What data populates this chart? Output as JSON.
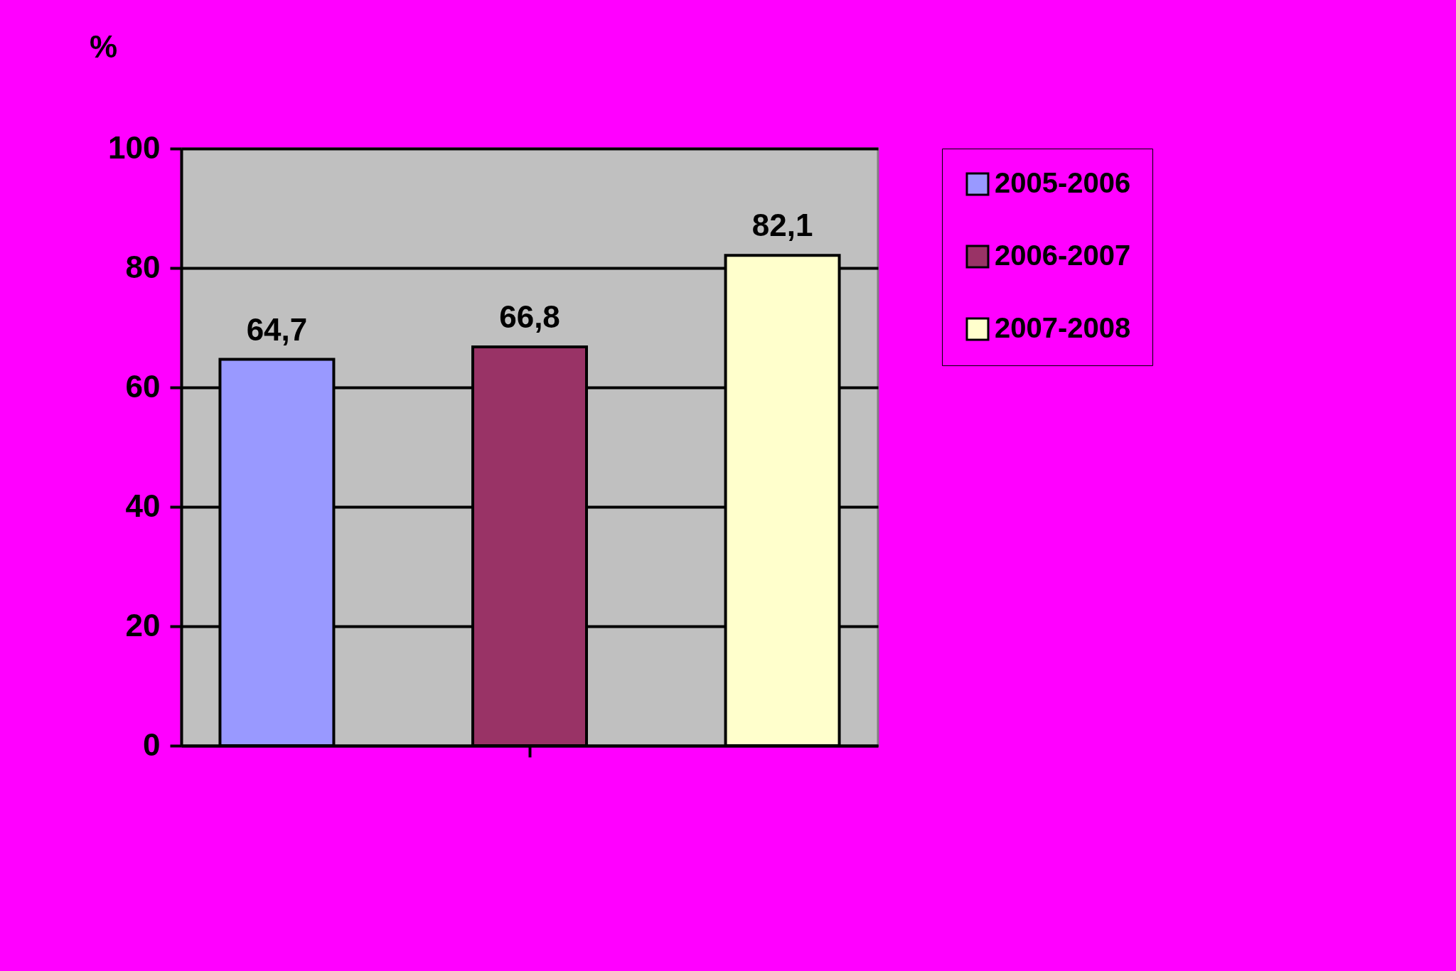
{
  "chart_data": {
    "type": "bar",
    "ylabel": "%",
    "categories": [
      null
    ],
    "series": [
      {
        "name": "2005-2006",
        "color": "#9999ff",
        "values": [
          64.7
        ],
        "value_labels": [
          "64,7"
        ]
      },
      {
        "name": "2006-2007",
        "color": "#993366",
        "values": [
          66.8
        ],
        "value_labels": [
          "66,8"
        ]
      },
      {
        "name": "2007-2008",
        "color": "#ffffcc",
        "values": [
          82.1
        ],
        "value_labels": [
          "82,1"
        ]
      }
    ],
    "ylim": [
      0,
      100
    ],
    "yticks": [
      0,
      20,
      40,
      60,
      80,
      100
    ],
    "grid": "y",
    "legend": "right"
  }
}
